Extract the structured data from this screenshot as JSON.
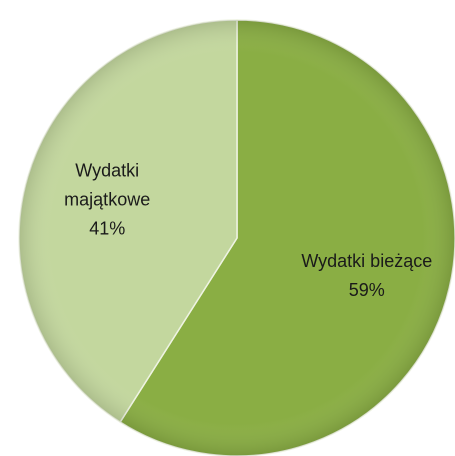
{
  "chart_data": {
    "type": "pie",
    "categories": [
      "Wydatki bieżące",
      "Wydatki majątkowe"
    ],
    "values": [
      59,
      41
    ],
    "value_labels": [
      "59%",
      "41%"
    ],
    "colors": [
      "#8aae44",
      "#c3d79e"
    ]
  }
}
